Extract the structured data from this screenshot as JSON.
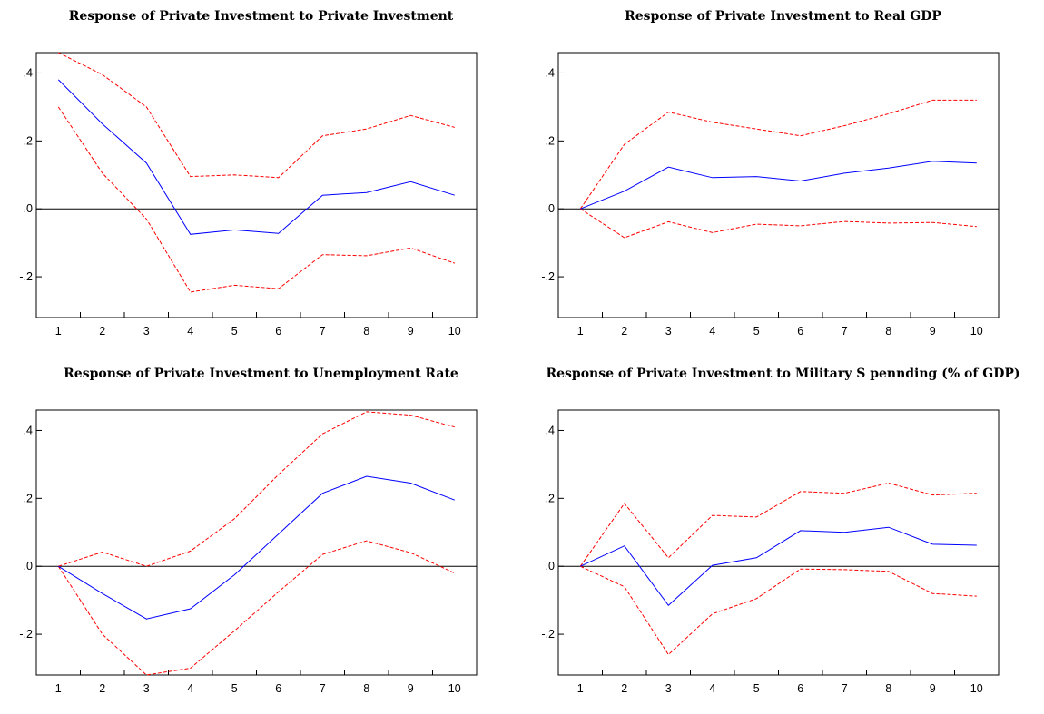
{
  "colors": {
    "response": "#0000ff",
    "band": "#ff0000",
    "zero_line": "#000000",
    "frame": "#000000"
  },
  "chart_data": [
    {
      "type": "line",
      "title": "Response of Private Investment to Private Investment",
      "x": [
        1,
        2,
        3,
        4,
        5,
        6,
        7,
        8,
        9,
        10
      ],
      "xticks": [
        "1",
        "2",
        "3",
        "4",
        "5",
        "6",
        "7",
        "8",
        "9",
        "10"
      ],
      "yticks": [
        ".4",
        ".2",
        ".0",
        "-.2"
      ],
      "ytick_values": [
        0.4,
        0.2,
        0.0,
        -0.2
      ],
      "ylim": [
        -0.32,
        0.46
      ],
      "zero_line": true,
      "grid": false,
      "series": [
        {
          "role": "response",
          "style": "solid",
          "values": [
            0.38,
            0.25,
            0.135,
            -0.075,
            -0.062,
            -0.072,
            0.04,
            0.048,
            0.08,
            0.04
          ]
        },
        {
          "role": "upper",
          "style": "dashed",
          "values": [
            0.46,
            0.395,
            0.3,
            0.095,
            0.1,
            0.092,
            0.215,
            0.235,
            0.275,
            0.24
          ]
        },
        {
          "role": "lower",
          "style": "dashed",
          "values": [
            0.3,
            0.105,
            -0.03,
            -0.245,
            -0.225,
            -0.235,
            -0.135,
            -0.138,
            -0.115,
            -0.16
          ]
        }
      ]
    },
    {
      "type": "line",
      "title": "Response of Private Investment to Real GDP",
      "x": [
        1,
        2,
        3,
        4,
        5,
        6,
        7,
        8,
        9,
        10
      ],
      "xticks": [
        "1",
        "2",
        "3",
        "4",
        "5",
        "6",
        "7",
        "8",
        "9",
        "10"
      ],
      "yticks": [
        ".4",
        ".2",
        ".0",
        "-.2"
      ],
      "ytick_values": [
        0.4,
        0.2,
        0.0,
        -0.2
      ],
      "ylim": [
        -0.32,
        0.46
      ],
      "zero_line": true,
      "grid": false,
      "series": [
        {
          "role": "response",
          "style": "solid",
          "values": [
            0.0,
            0.052,
            0.123,
            0.092,
            0.095,
            0.082,
            0.105,
            0.12,
            0.14,
            0.135
          ]
        },
        {
          "role": "upper",
          "style": "dashed",
          "values": [
            0.0,
            0.19,
            0.285,
            0.255,
            0.235,
            0.215,
            0.245,
            0.28,
            0.32,
            0.32
          ]
        },
        {
          "role": "lower",
          "style": "dashed",
          "values": [
            0.0,
            -0.085,
            -0.038,
            -0.07,
            -0.045,
            -0.05,
            -0.037,
            -0.042,
            -0.04,
            -0.052
          ]
        }
      ]
    },
    {
      "type": "line",
      "title": "Response of Private Investment to Unemployment Rate",
      "x": [
        1,
        2,
        3,
        4,
        5,
        6,
        7,
        8,
        9,
        10
      ],
      "xticks": [
        "1",
        "2",
        "3",
        "4",
        "5",
        "6",
        "7",
        "8",
        "9",
        "10"
      ],
      "yticks": [
        ".4",
        ".2",
        ".0",
        "-.2"
      ],
      "ytick_values": [
        0.4,
        0.2,
        0.0,
        -0.2
      ],
      "ylim": [
        -0.32,
        0.46
      ],
      "zero_line": true,
      "grid": false,
      "series": [
        {
          "role": "response",
          "style": "solid",
          "values": [
            0.0,
            -0.08,
            -0.155,
            -0.125,
            -0.025,
            0.095,
            0.215,
            0.265,
            0.245,
            0.195
          ]
        },
        {
          "role": "upper",
          "style": "dashed",
          "values": [
            0.0,
            0.042,
            0.0,
            0.045,
            0.14,
            0.27,
            0.39,
            0.455,
            0.445,
            0.41
          ]
        },
        {
          "role": "lower",
          "style": "dashed",
          "values": [
            0.0,
            -0.2,
            -0.32,
            -0.3,
            -0.19,
            -0.075,
            0.035,
            0.075,
            0.04,
            -0.02
          ]
        }
      ]
    },
    {
      "type": "line",
      "title": "Response of Private Investment to Military S pennding (% of GDP)",
      "x": [
        1,
        2,
        3,
        4,
        5,
        6,
        7,
        8,
        9,
        10
      ],
      "xticks": [
        "1",
        "2",
        "3",
        "4",
        "5",
        "6",
        "7",
        "8",
        "9",
        "10"
      ],
      "yticks": [
        ".4",
        ".2",
        ".0",
        "-.2"
      ],
      "ytick_values": [
        0.4,
        0.2,
        0.0,
        -0.2
      ],
      "ylim": [
        -0.32,
        0.46
      ],
      "zero_line": true,
      "grid": false,
      "series": [
        {
          "role": "response",
          "style": "solid",
          "values": [
            0.0,
            0.06,
            -0.115,
            0.003,
            0.025,
            0.105,
            0.1,
            0.115,
            0.065,
            0.062
          ]
        },
        {
          "role": "upper",
          "style": "dashed",
          "values": [
            0.0,
            0.185,
            0.025,
            0.15,
            0.145,
            0.22,
            0.215,
            0.245,
            0.21,
            0.215
          ]
        },
        {
          "role": "lower",
          "style": "dashed",
          "values": [
            0.0,
            -0.06,
            -0.26,
            -0.14,
            -0.095,
            -0.008,
            -0.01,
            -0.015,
            -0.08,
            -0.088
          ]
        }
      ]
    }
  ]
}
